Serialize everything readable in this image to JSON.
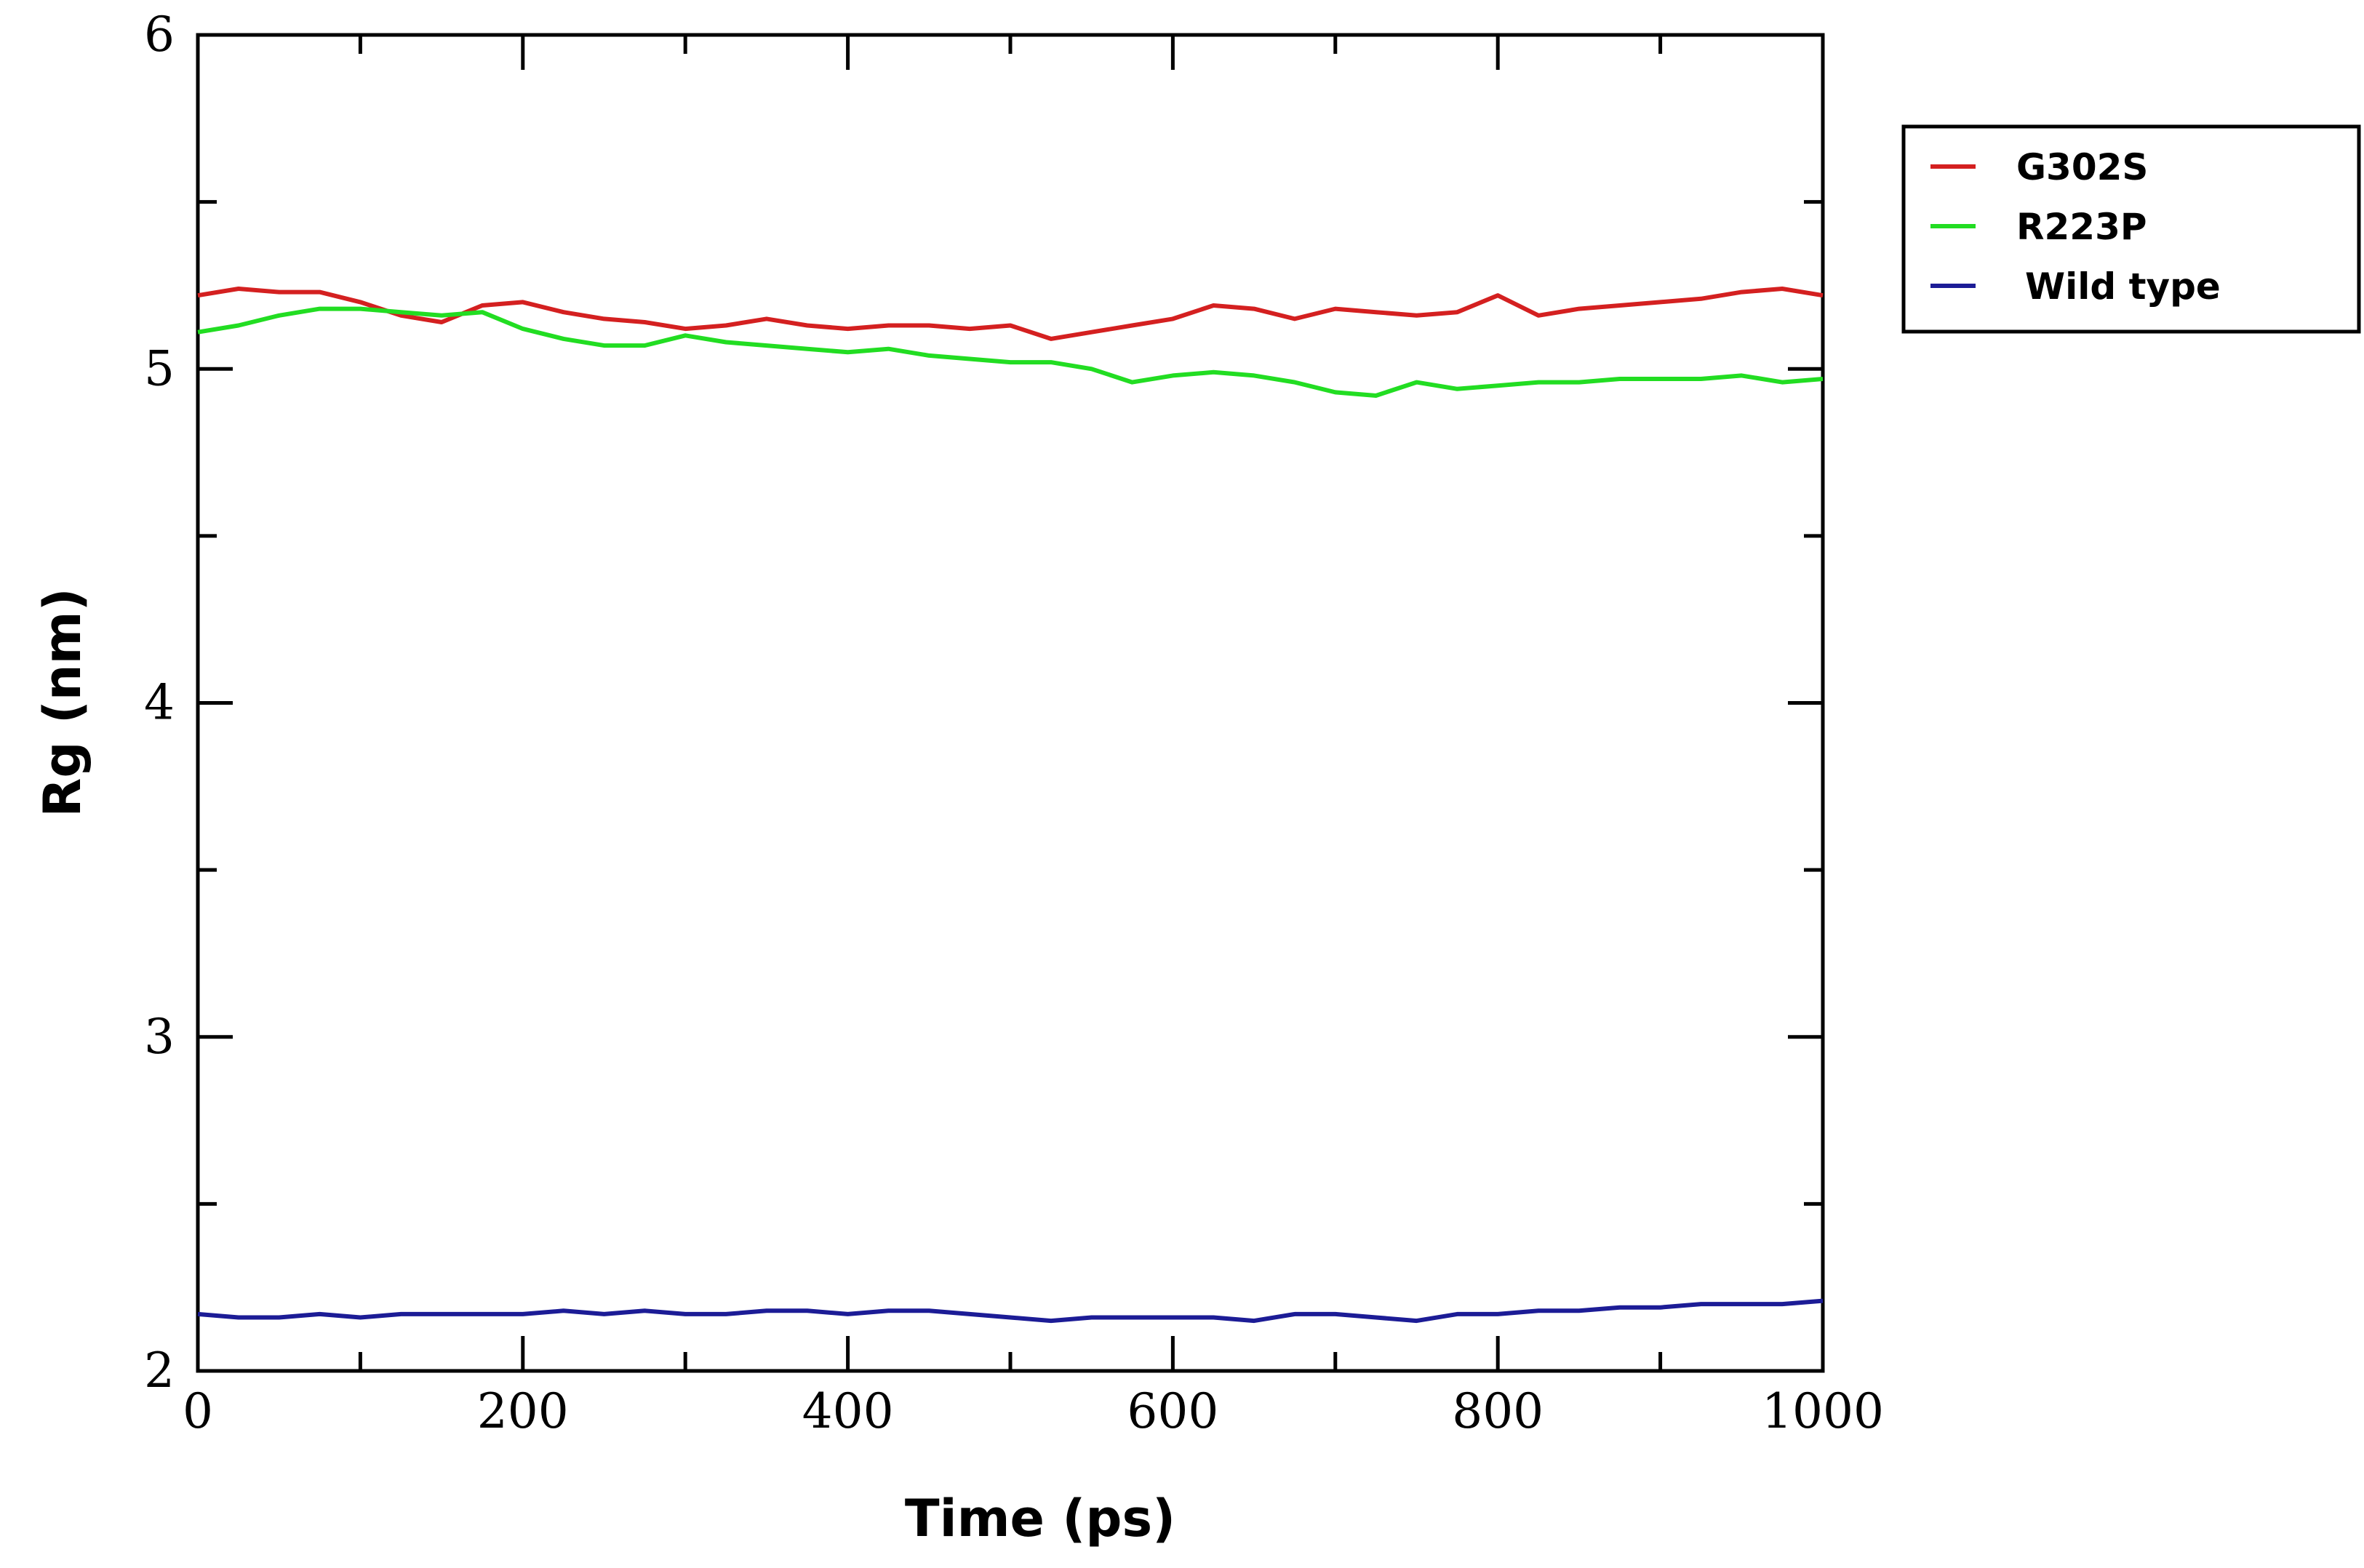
{
  "chart_data": {
    "type": "line",
    "title": "",
    "xlabel": "Time (ps)",
    "ylabel": "Rg (nm)",
    "xlim": [
      0,
      1000
    ],
    "ylim": [
      2,
      6
    ],
    "x_ticks": [
      0,
      200,
      400,
      600,
      800,
      1000
    ],
    "x_tick_labels": [
      "0",
      "200",
      "400",
      "600",
      "800",
      "1000"
    ],
    "y_ticks": [
      2,
      3,
      4,
      5,
      6
    ],
    "y_tick_labels": [
      "2",
      "3",
      "4",
      "5",
      "6"
    ],
    "grid": false,
    "legend_position": "top-right, outside plot area",
    "series": [
      {
        "name": "G302S",
        "color": "#d42020",
        "x": [
          0,
          25,
          50,
          75,
          100,
          125,
          150,
          175,
          200,
          225,
          250,
          275,
          300,
          325,
          350,
          375,
          400,
          425,
          450,
          475,
          500,
          525,
          550,
          575,
          600,
          625,
          650,
          675,
          700,
          725,
          750,
          775,
          800,
          825,
          850,
          875,
          900,
          925,
          950,
          975,
          1000
        ],
        "y": [
          5.22,
          5.24,
          5.23,
          5.23,
          5.2,
          5.16,
          5.14,
          5.19,
          5.2,
          5.17,
          5.15,
          5.14,
          5.12,
          5.13,
          5.15,
          5.13,
          5.12,
          5.13,
          5.13,
          5.12,
          5.13,
          5.09,
          5.11,
          5.13,
          5.15,
          5.19,
          5.18,
          5.15,
          5.18,
          5.17,
          5.16,
          5.17,
          5.22,
          5.16,
          5.18,
          5.19,
          5.2,
          5.21,
          5.23,
          5.24,
          5.22
        ]
      },
      {
        "name": "R223P",
        "color": "#22dd22",
        "x": [
          0,
          25,
          50,
          75,
          100,
          125,
          150,
          175,
          200,
          225,
          250,
          275,
          300,
          325,
          350,
          375,
          400,
          425,
          450,
          475,
          500,
          525,
          550,
          575,
          600,
          625,
          650,
          675,
          700,
          725,
          750,
          775,
          800,
          825,
          850,
          875,
          900,
          925,
          950,
          975,
          1000
        ],
        "y": [
          5.11,
          5.13,
          5.16,
          5.18,
          5.18,
          5.17,
          5.16,
          5.17,
          5.12,
          5.09,
          5.07,
          5.07,
          5.1,
          5.08,
          5.07,
          5.06,
          5.05,
          5.06,
          5.04,
          5.03,
          5.02,
          5.02,
          5.0,
          4.96,
          4.98,
          4.99,
          4.98,
          4.96,
          4.93,
          4.92,
          4.96,
          4.94,
          4.95,
          4.96,
          4.96,
          4.97,
          4.97,
          4.97,
          4.98,
          4.96,
          4.97
        ]
      },
      {
        "name": "Wild type",
        "color": "#1c1c96",
        "x": [
          0,
          25,
          50,
          75,
          100,
          125,
          150,
          175,
          200,
          225,
          250,
          275,
          300,
          325,
          350,
          375,
          400,
          425,
          450,
          475,
          500,
          525,
          550,
          575,
          600,
          625,
          650,
          675,
          700,
          725,
          750,
          775,
          800,
          825,
          850,
          875,
          900,
          925,
          950,
          975,
          1000
        ],
        "y": [
          2.17,
          2.16,
          2.16,
          2.17,
          2.16,
          2.17,
          2.17,
          2.17,
          2.17,
          2.18,
          2.17,
          2.18,
          2.17,
          2.17,
          2.18,
          2.18,
          2.17,
          2.18,
          2.18,
          2.17,
          2.16,
          2.15,
          2.16,
          2.16,
          2.16,
          2.16,
          2.15,
          2.17,
          2.17,
          2.16,
          2.15,
          2.17,
          2.17,
          2.18,
          2.18,
          2.19,
          2.19,
          2.2,
          2.2,
          2.2,
          2.21
        ]
      }
    ]
  }
}
